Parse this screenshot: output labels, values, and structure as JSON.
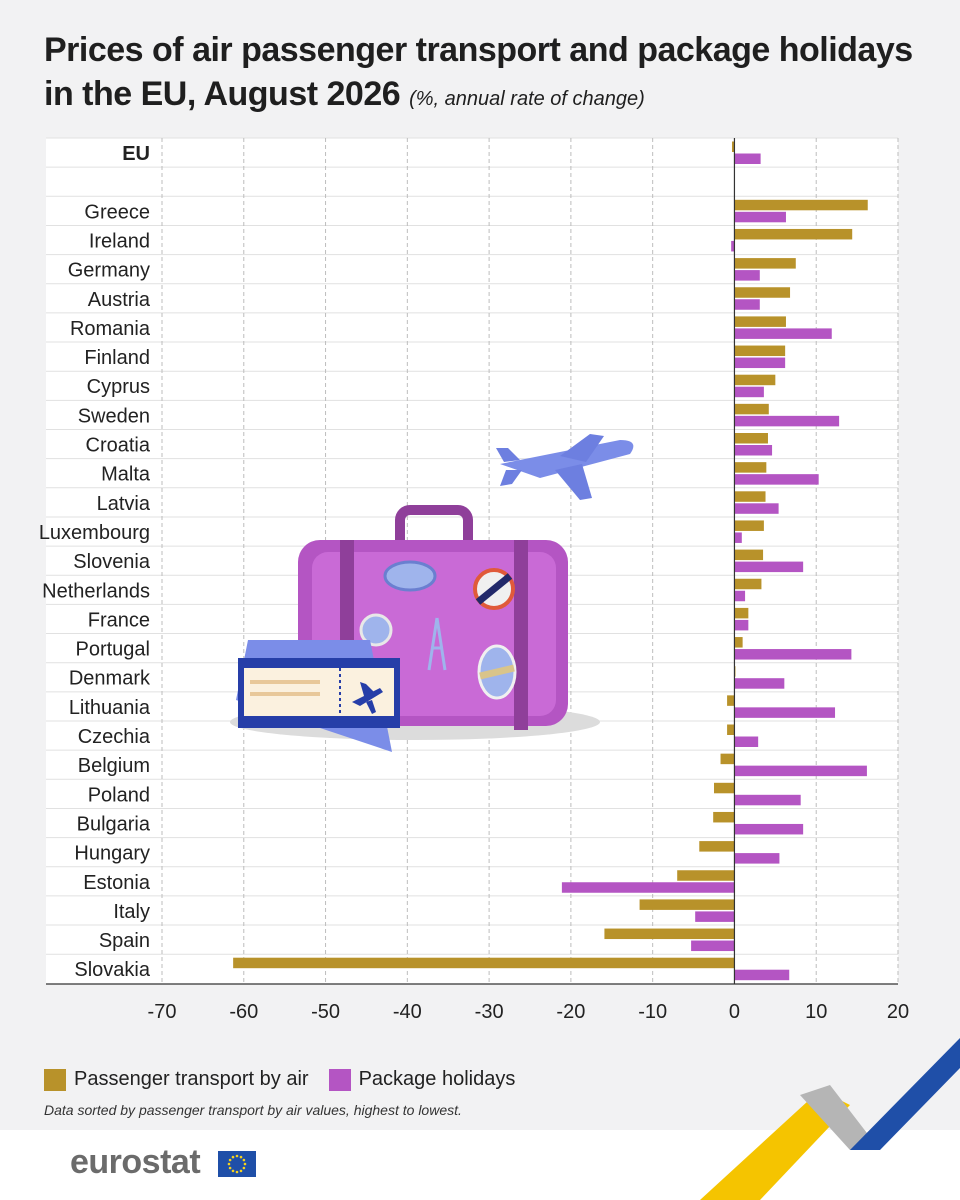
{
  "header": {
    "title_line1": "Prices of air passenger transport and package holidays",
    "title_line2": "in the EU, August 2026",
    "subtitle": "(%, annual rate of change)"
  },
  "legend": {
    "air_label": "Passenger transport by air",
    "holiday_label": "Package holidays"
  },
  "note": "Data sorted by passenger transport by air values, highest to lowest.",
  "brand": {
    "logo_text": "eurostat"
  },
  "colors": {
    "air": "#b8922a",
    "holidays": "#b455c3",
    "grid": "#bdbdbd",
    "axis": "#333333"
  },
  "chart_data": {
    "type": "bar",
    "orientation": "horizontal",
    "xlim": [
      -70,
      20
    ],
    "x_ticks": [
      "-70",
      "-60",
      "-50",
      "-40",
      "-30",
      "-20",
      "-10",
      "0",
      "10",
      "20"
    ],
    "categories": [
      "EU",
      "Greece",
      "Ireland",
      "Germany",
      "Austria",
      "Romania",
      "Finland",
      "Cyprus",
      "Sweden",
      "Croatia",
      "Malta",
      "Latvia",
      "Luxembourg",
      "Slovenia",
      "Netherlands",
      "France",
      "Portugal",
      "Denmark",
      "Lithuania",
      "Czechia",
      "Belgium",
      "Poland",
      "Bulgaria",
      "Hungary",
      "Estonia",
      "Italy",
      "Spain",
      "Slovakia"
    ],
    "series": [
      {
        "name": "Passenger transport by air",
        "values": [
          -0.3,
          16.3,
          14.4,
          7.5,
          6.8,
          6.3,
          6.2,
          5.0,
          4.2,
          4.1,
          3.9,
          3.8,
          3.6,
          3.5,
          3.3,
          1.7,
          1.0,
          0.1,
          -0.9,
          -0.9,
          -1.7,
          -2.5,
          -2.6,
          -4.3,
          -7.0,
          -11.6,
          -15.9,
          -61.3
        ]
      },
      {
        "name": "Package holidays",
        "values": [
          3.2,
          6.3,
          -0.4,
          3.1,
          3.1,
          11.9,
          6.2,
          3.6,
          12.8,
          4.6,
          10.3,
          5.4,
          0.9,
          8.4,
          1.3,
          1.7,
          14.3,
          6.1,
          12.3,
          2.9,
          16.2,
          8.1,
          8.4,
          5.5,
          -21.1,
          -4.8,
          -5.3,
          6.7
        ]
      }
    ],
    "grid": true,
    "legend_position": "bottom-left"
  }
}
